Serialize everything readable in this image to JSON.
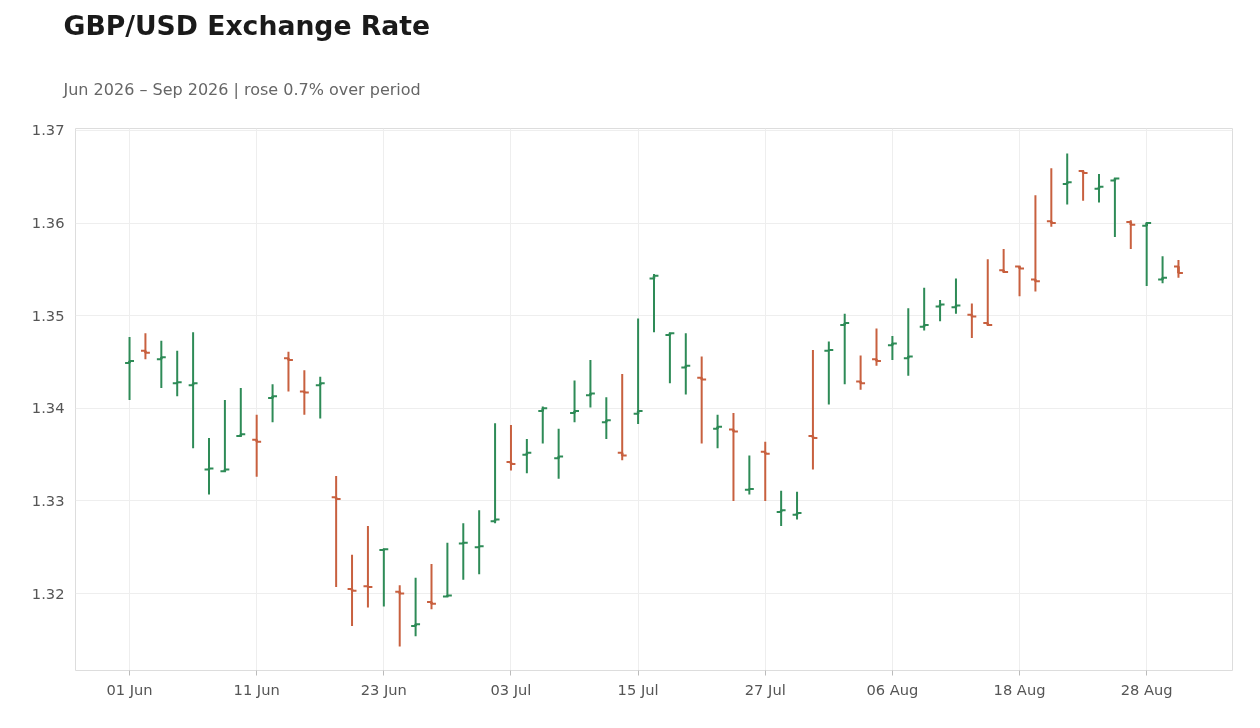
{
  "chart_data": {
    "type": "candlestick",
    "title": "GBP/USD Exchange Rate",
    "subtitle": "Jun 2026 – Sep 2026 | rose 0.7% over period",
    "categories": [
      "01 Jun",
      null,
      null,
      null,
      null,
      null,
      null,
      null,
      "11 Jun",
      null,
      null,
      null,
      null,
      null,
      null,
      null,
      "23 Jun",
      null,
      null,
      null,
      null,
      null,
      null,
      null,
      "03 Jul",
      null,
      null,
      null,
      null,
      null,
      null,
      null,
      "15 Jul",
      null,
      null,
      null,
      null,
      null,
      null,
      null,
      "27 Jul",
      null,
      null,
      null,
      null,
      null,
      null,
      null,
      "06 Aug",
      null,
      null,
      null,
      null,
      null,
      null,
      null,
      "18 Aug",
      null,
      null,
      null,
      null,
      null,
      null,
      null,
      "28 Aug",
      null,
      null
    ],
    "ohlc": [
      [
        1.3449,
        1.3477,
        1.3409,
        1.3451
      ],
      [
        1.3462,
        1.3481,
        1.3453,
        1.346
      ],
      [
        1.3453,
        1.3473,
        1.3422,
        1.3455
      ],
      [
        1.3427,
        1.3462,
        1.3413,
        1.3428
      ],
      [
        1.3425,
        1.3482,
        1.3357,
        1.3427
      ],
      [
        1.3334,
        1.3368,
        1.3307,
        1.3335
      ],
      [
        1.3332,
        1.3409,
        1.3332,
        1.3334
      ],
      [
        1.337,
        1.3422,
        1.337,
        1.3372
      ],
      [
        1.3366,
        1.3393,
        1.3326,
        1.3364
      ],
      [
        1.3411,
        1.3426,
        1.3385,
        1.3413
      ],
      [
        1.3454,
        1.3461,
        1.3418,
        1.3452
      ],
      [
        1.3418,
        1.3441,
        1.3393,
        1.3417
      ],
      [
        1.3425,
        1.3434,
        1.3389,
        1.3427
      ],
      [
        1.3304,
        1.3327,
        1.3207,
        1.3302
      ],
      [
        1.3205,
        1.3242,
        1.3165,
        1.3203
      ],
      [
        1.3208,
        1.3273,
        1.3185,
        1.3207
      ],
      [
        1.3247,
        1.3249,
        1.3186,
        1.3248
      ],
      [
        1.3202,
        1.3209,
        1.3143,
        1.32
      ],
      [
        1.3165,
        1.3217,
        1.3154,
        1.3167
      ],
      [
        1.3191,
        1.3232,
        1.3183,
        1.3189
      ],
      [
        1.3197,
        1.3255,
        1.3197,
        1.3198
      ],
      [
        1.3254,
        1.3276,
        1.3215,
        1.3255
      ],
      [
        1.325,
        1.329,
        1.3221,
        1.3251
      ],
      [
        1.3278,
        1.3384,
        1.3276,
        1.328
      ],
      [
        1.3342,
        1.3382,
        1.3333,
        1.334
      ],
      [
        1.335,
        1.3367,
        1.333,
        1.3352
      ],
      [
        1.3397,
        1.3402,
        1.3362,
        1.34
      ],
      [
        1.3346,
        1.3378,
        1.3324,
        1.3348
      ],
      [
        1.3395,
        1.343,
        1.3385,
        1.3397
      ],
      [
        1.3414,
        1.3452,
        1.3401,
        1.3416
      ],
      [
        1.3385,
        1.3412,
        1.3367,
        1.3387
      ],
      [
        1.3352,
        1.3437,
        1.3344,
        1.3349
      ],
      [
        1.3394,
        1.3497,
        1.3383,
        1.3397
      ],
      [
        1.354,
        1.3545,
        1.3482,
        1.3543
      ],
      [
        1.3479,
        1.3481,
        1.3427,
        1.3481
      ],
      [
        1.3444,
        1.3481,
        1.3415,
        1.3446
      ],
      [
        1.3433,
        1.3456,
        1.3362,
        1.3431
      ],
      [
        1.3378,
        1.3393,
        1.3357,
        1.338
      ],
      [
        1.3377,
        1.3395,
        1.33,
        1.3375
      ],
      [
        1.3312,
        1.3349,
        1.3307,
        1.3313
      ],
      [
        1.3353,
        1.3364,
        1.33,
        1.3351
      ],
      [
        1.3288,
        1.3311,
        1.3273,
        1.329
      ],
      [
        1.3285,
        1.331,
        1.328,
        1.3287
      ],
      [
        1.337,
        1.3463,
        1.3334,
        1.3368
      ],
      [
        1.3462,
        1.3472,
        1.3404,
        1.3463
      ],
      [
        1.349,
        1.3502,
        1.3426,
        1.3492
      ],
      [
        1.3429,
        1.3457,
        1.342,
        1.3427
      ],
      [
        1.3453,
        1.3486,
        1.3446,
        1.3451
      ],
      [
        1.3468,
        1.3478,
        1.3452,
        1.347
      ],
      [
        1.3454,
        1.3508,
        1.3435,
        1.3456
      ],
      [
        1.3488,
        1.353,
        1.3484,
        1.349
      ],
      [
        1.351,
        1.3517,
        1.3494,
        1.3512
      ],
      [
        1.3509,
        1.354,
        1.3502,
        1.3511
      ],
      [
        1.3501,
        1.3513,
        1.3476,
        1.3499
      ],
      [
        1.3492,
        1.3561,
        1.349,
        1.349
      ],
      [
        1.3549,
        1.3572,
        1.3546,
        1.3547
      ],
      [
        1.3553,
        1.3554,
        1.3521,
        1.3551
      ],
      [
        1.3539,
        1.363,
        1.3526,
        1.3537
      ],
      [
        1.3602,
        1.3659,
        1.3596,
        1.36
      ],
      [
        1.3642,
        1.3675,
        1.362,
        1.3644
      ],
      [
        1.3656,
        1.3657,
        1.3624,
        1.3654
      ],
      [
        1.3637,
        1.3653,
        1.3622,
        1.3639
      ],
      [
        1.3646,
        1.3649,
        1.3585,
        1.3648
      ],
      [
        1.3601,
        1.3603,
        1.3572,
        1.3598
      ],
      [
        1.3597,
        1.36,
        1.3532,
        1.36
      ],
      [
        1.3539,
        1.3564,
        1.3535,
        1.3541
      ],
      [
        1.3553,
        1.356,
        1.3541,
        1.3546
      ]
    ],
    "colors": [
      "#2e8b57",
      "#c8603f",
      "#2e8b57",
      "#2e8b57",
      "#2e8b57",
      "#2e8b57",
      "#2e8b57",
      "#2e8b57",
      "#c8603f",
      "#2e8b57",
      "#c8603f",
      "#c8603f",
      "#2e8b57",
      "#c8603f",
      "#c8603f",
      "#c8603f",
      "#2e8b57",
      "#c8603f",
      "#2e8b57",
      "#c8603f",
      "#2e8b57",
      "#2e8b57",
      "#2e8b57",
      "#2e8b57",
      "#c8603f",
      "#2e8b57",
      "#2e8b57",
      "#2e8b57",
      "#2e8b57",
      "#2e8b57",
      "#2e8b57",
      "#c8603f",
      "#2e8b57",
      "#2e8b57",
      "#2e8b57",
      "#2e8b57",
      "#c8603f",
      "#2e8b57",
      "#c8603f",
      "#2e8b57",
      "#c8603f",
      "#2e8b57",
      "#2e8b57",
      "#c8603f",
      "#2e8b57",
      "#2e8b57",
      "#c8603f",
      "#c8603f",
      "#2e8b57",
      "#2e8b57",
      "#2e8b57",
      "#2e8b57",
      "#2e8b57",
      "#c8603f",
      "#c8603f",
      "#c8603f",
      "#c8603f",
      "#c8603f",
      "#c8603f",
      "#2e8b57",
      "#c8603f",
      "#2e8b57",
      "#2e8b57",
      "#c8603f",
      "#2e8b57",
      "#2e8b57",
      "#c8603f"
    ],
    "ylim": [
      1.3117,
      1.3702
    ],
    "yticks": [
      1.32,
      1.33,
      1.34,
      1.35,
      1.36,
      1.37
    ],
    "grid": true
  }
}
